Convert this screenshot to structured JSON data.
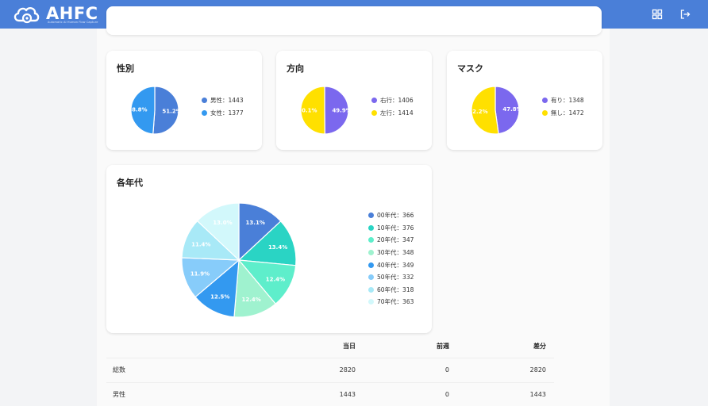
{
  "app": {
    "logo_text": "AHFC",
    "logo_subtitle": "Automatic AI Human Flow Capture",
    "header_icons": [
      "grid-icon",
      "logout-icon"
    ]
  },
  "colors": {
    "header": "#4a7fd8",
    "male": "#4a7fd8",
    "female": "#3399f0",
    "right": "#7b68ee",
    "left": "#ffe000",
    "mask_yes": "#7b68ee",
    "mask_no": "#ffe000"
  },
  "cards": {
    "gender": {
      "title": "性別",
      "legend": [
        "男性：1443",
        "女性：1377"
      ],
      "chart_data": {
        "type": "pie",
        "labels": [
          "男性",
          "女性"
        ],
        "values": [
          1443,
          1377
        ],
        "slice_labels": [
          "51.2%",
          "48.8%"
        ],
        "colors": [
          "#4a7fd8",
          "#3399f0"
        ]
      }
    },
    "direction": {
      "title": "方向",
      "legend": [
        "右行：1406",
        "左行：1414"
      ],
      "chart_data": {
        "type": "pie",
        "labels": [
          "右行",
          "左行"
        ],
        "values": [
          1406,
          1414
        ],
        "slice_labels": [
          "49.9%",
          "50.1%"
        ],
        "colors": [
          "#7b68ee",
          "#ffe000"
        ]
      }
    },
    "mask": {
      "title": "マスク",
      "legend": [
        "有り：1348",
        "無し：1472"
      ],
      "chart_data": {
        "type": "pie",
        "labels": [
          "有り",
          "無し"
        ],
        "values": [
          1348,
          1472
        ],
        "slice_labels": [
          "47.8%",
          "52.2%"
        ],
        "colors": [
          "#7b68ee",
          "#ffe000"
        ]
      }
    },
    "age": {
      "title": "各年代",
      "legend": [
        "00年代：366",
        "10年代：376",
        "20年代：347",
        "30年代：348",
        "40年代：349",
        "50年代：332",
        "60年代：318",
        "70年代：363"
      ],
      "chart_data": {
        "type": "pie",
        "labels": [
          "00年代",
          "10年代",
          "20年代",
          "30年代",
          "40年代",
          "50年代",
          "60年代",
          "70年代"
        ],
        "values": [
          366,
          376,
          347,
          348,
          349,
          332,
          318,
          363
        ],
        "slice_labels": [
          "13.1%",
          "13.4%",
          "12.4%",
          "12.4%",
          "12.5%",
          "11.9%",
          "11.4%",
          "13.0%"
        ],
        "colors": [
          "#4a7fd8",
          "#2ad4c4",
          "#5eeecb",
          "#9ff2cf",
          "#3399f0",
          "#87ccfa",
          "#a8e9f7",
          "#d2f8fb"
        ]
      }
    }
  },
  "table": {
    "headers": [
      "",
      "当日",
      "前週",
      "差分"
    ],
    "rows": [
      [
        "総数",
        "2820",
        "0",
        "2820"
      ],
      [
        "男性",
        "1443",
        "0",
        "1443"
      ]
    ]
  }
}
